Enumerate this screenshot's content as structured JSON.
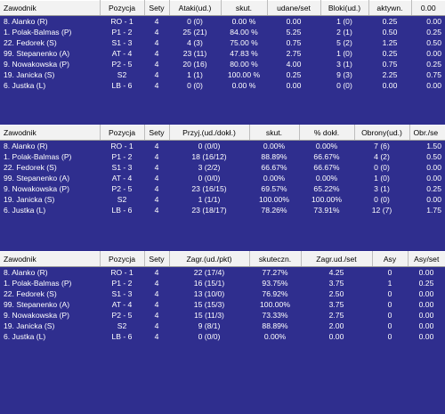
{
  "attack": {
    "headers": [
      "Zawodnik",
      "Pozycja",
      "Sety",
      "Ataki(ud.)",
      "skut.",
      "udane/set",
      "Bloki(ud.)",
      "aktywn.",
      "0.00"
    ],
    "rows": [
      [
        "8. Alanko (R)",
        "RO - 1",
        "4",
        "0 (0)",
        "0.00 %",
        "0.00",
        "1 (0)",
        "0.25",
        "0.00"
      ],
      [
        "1. Polak-Balmas (P)",
        "P1 - 2",
        "4",
        "25 (21)",
        "84.00 %",
        "5.25",
        "2 (1)",
        "0.50",
        "0.25"
      ],
      [
        "22. Fedorek (S)",
        "S1 - 3",
        "4",
        "4 (3)",
        "75.00 %",
        "0.75",
        "5 (2)",
        "1.25",
        "0.50"
      ],
      [
        "99. Stepanenko (A)",
        "AT - 4",
        "4",
        "23 (11)",
        "47.83 %",
        "2.75",
        "1 (0)",
        "0.25",
        "0.00"
      ],
      [
        "9. Nowakowska (P)",
        "P2 - 5",
        "4",
        "20 (16)",
        "80.00 %",
        "4.00",
        "3 (1)",
        "0.75",
        "0.25"
      ],
      [
        "19. Janicka (S)",
        "S2",
        "4",
        "1 (1)",
        "100.00 %",
        "0.25",
        "9 (3)",
        "2.25",
        "0.75"
      ],
      [
        "6. Justka (L)",
        "LB - 6",
        "4",
        "0 (0)",
        "0.00 %",
        "0.00",
        "0 (0)",
        "0.00",
        "0.00"
      ]
    ]
  },
  "reception": {
    "headers": [
      "Zawodnik",
      "Pozycja",
      "Sety",
      "Przyj.(ud./dokł.)",
      "skut.",
      "% dokł.",
      "Obrony(ud.)",
      "Obr./se"
    ],
    "rows": [
      [
        "8. Alanko (R)",
        "RO - 1",
        "4",
        "0 (0/0)",
        "0.00%",
        "0.00%",
        "7 (6)",
        "1.50"
      ],
      [
        "1. Polak-Balmas (P)",
        "P1 - 2",
        "4",
        "18 (16/12)",
        "88.89%",
        "66.67%",
        "4 (2)",
        "0.50"
      ],
      [
        "22. Fedorek (S)",
        "S1 - 3",
        "4",
        "3 (2/2)",
        "66.67%",
        "66.67%",
        "0 (0)",
        "0.00"
      ],
      [
        "99. Stepanenko (A)",
        "AT - 4",
        "4",
        "0 (0/0)",
        "0.00%",
        "0.00%",
        "1 (0)",
        "0.00"
      ],
      [
        "9. Nowakowska (P)",
        "P2 - 5",
        "4",
        "23 (16/15)",
        "69.57%",
        "65.22%",
        "3 (1)",
        "0.25"
      ],
      [
        "19. Janicka (S)",
        "S2",
        "4",
        "1 (1/1)",
        "100.00%",
        "100.00%",
        "0 (0)",
        "0.00"
      ],
      [
        "6. Justka (L)",
        "LB - 6",
        "4",
        "23 (18/17)",
        "78.26%",
        "73.91%",
        "12 (7)",
        "1.75"
      ]
    ]
  },
  "serve": {
    "headers": [
      "Zawodnik",
      "Pozycja",
      "Sety",
      "Zagr.(ud./pkt)",
      "skuteczn.",
      "Zagr.ud./set",
      "Asy",
      "Asy/set"
    ],
    "rows": [
      [
        "8. Alanko (R)",
        "RO - 1",
        "4",
        "22 (17/4)",
        "77.27%",
        "4.25",
        "0",
        "0.00"
      ],
      [
        "1. Polak-Balmas (P)",
        "P1 - 2",
        "4",
        "16 (15/1)",
        "93.75%",
        "3.75",
        "1",
        "0.25"
      ],
      [
        "22. Fedorek (S)",
        "S1 - 3",
        "4",
        "13 (10/0)",
        "76.92%",
        "2.50",
        "0",
        "0.00"
      ],
      [
        "99. Stepanenko (A)",
        "AT - 4",
        "4",
        "15 (15/3)",
        "100.00%",
        "3.75",
        "0",
        "0.00"
      ],
      [
        "9. Nowakowska (P)",
        "P2 - 5",
        "4",
        "15 (11/3)",
        "73.33%",
        "2.75",
        "0",
        "0.00"
      ],
      [
        "19. Janicka (S)",
        "S2",
        "4",
        "9 (8/1)",
        "88.89%",
        "2.00",
        "0",
        "0.00"
      ],
      [
        "6. Justka (L)",
        "LB - 6",
        "4",
        "0 (0/0)",
        "0.00%",
        "0.00",
        "0",
        "0.00"
      ]
    ]
  }
}
